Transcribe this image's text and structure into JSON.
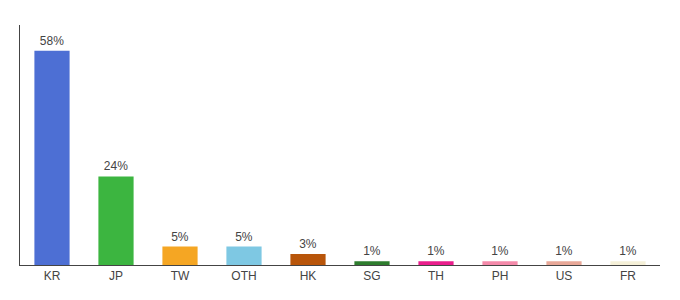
{
  "chart_data": {
    "type": "bar",
    "categories": [
      "KR",
      "JP",
      "TW",
      "OTH",
      "HK",
      "SG",
      "TH",
      "PH",
      "US",
      "FR"
    ],
    "values": [
      58,
      24,
      5,
      5,
      3,
      1,
      1,
      1,
      1,
      1
    ],
    "value_labels": [
      "58%",
      "24%",
      "5%",
      "5%",
      "3%",
      "1%",
      "1%",
      "1%",
      "1%",
      "1%"
    ],
    "colors": [
      "#4d6fd4",
      "#3cb540",
      "#f5a623",
      "#7ec8e3",
      "#b8550a",
      "#2e7d2e",
      "#e91e8c",
      "#f48aaa",
      "#e8a898",
      "#f5f0d8"
    ],
    "ylim": [
      0,
      65
    ],
    "grid": false,
    "data_labels": true,
    "tick_labels": "x"
  }
}
